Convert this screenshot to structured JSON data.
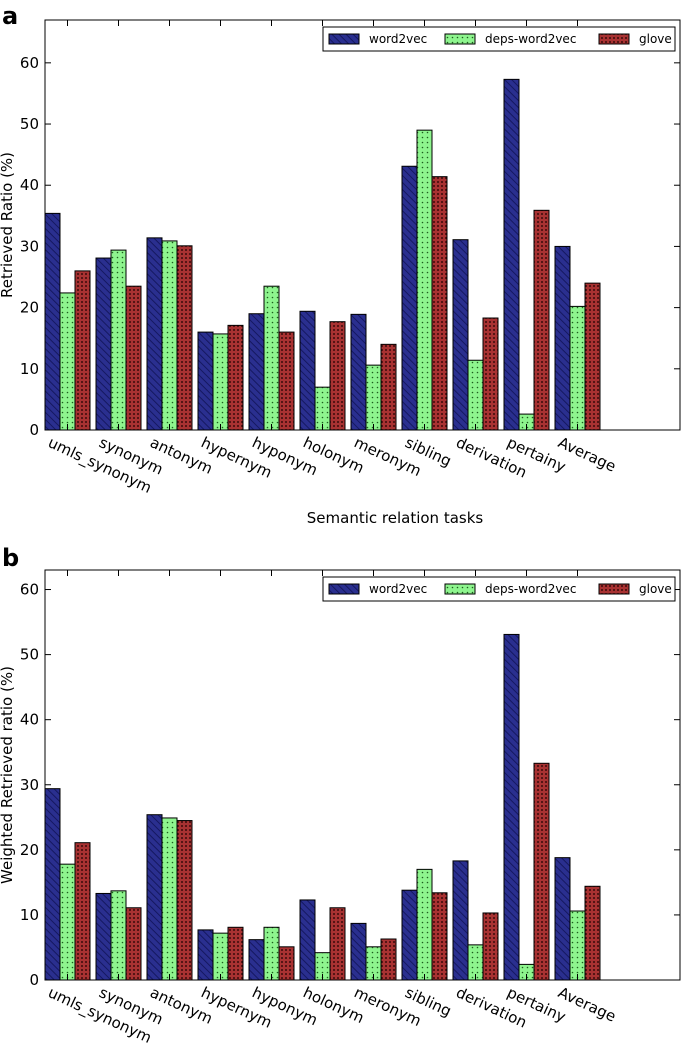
{
  "chart_data": [
    {
      "panel_label": "a",
      "type": "bar",
      "categories": [
        "umls_synonym",
        "synonym",
        "antonym",
        "hypernym",
        "hyponym",
        "holonym",
        "meronym",
        "sibling",
        "derivation",
        "pertainy",
        "Average"
      ],
      "series": [
        {
          "name": "word2vec",
          "color": "#2a2f8f",
          "pattern": "hatch",
          "values": [
            35.4,
            28.1,
            31.4,
            16.0,
            19.0,
            19.4,
            18.9,
            43.1,
            31.1,
            57.3,
            30.0
          ]
        },
        {
          "name": "deps-word2vec",
          "color": "#8ef58e",
          "pattern": "dots",
          "values": [
            22.4,
            29.4,
            30.9,
            15.7,
            23.5,
            7.0,
            10.6,
            49.0,
            11.4,
            2.6,
            20.2
          ]
        },
        {
          "name": "glove",
          "color": "#a83232",
          "pattern": "dense-dots",
          "values": [
            26.0,
            23.5,
            30.1,
            17.1,
            16.0,
            17.7,
            14.0,
            41.4,
            18.3,
            35.9,
            24.0
          ]
        }
      ],
      "title": "",
      "xlabel": "Semantic relation tasks",
      "ylabel": "Retrieved Ratio (%)",
      "ylim": [
        0,
        67
      ],
      "yticks": [
        "0",
        "10",
        "20",
        "30",
        "40",
        "50",
        "60"
      ],
      "legend": "top-right"
    },
    {
      "panel_label": "b",
      "type": "bar",
      "categories": [
        "umls_synonym",
        "synonym",
        "antonym",
        "hypernym",
        "hyponym",
        "holonym",
        "meronym",
        "sibling",
        "derivation",
        "pertainy",
        "Average"
      ],
      "series": [
        {
          "name": "word2vec",
          "color": "#2a2f8f",
          "pattern": "hatch",
          "values": [
            29.4,
            13.3,
            25.4,
            7.7,
            6.2,
            12.3,
            8.7,
            13.8,
            18.3,
            53.1,
            18.8
          ]
        },
        {
          "name": "deps-word2vec",
          "color": "#8ef58e",
          "pattern": "dots",
          "values": [
            17.8,
            13.7,
            24.9,
            7.2,
            8.1,
            4.2,
            5.1,
            17.0,
            5.4,
            2.4,
            10.6
          ]
        },
        {
          "name": "glove",
          "color": "#a83232",
          "pattern": "dense-dots",
          "values": [
            21.1,
            11.1,
            24.5,
            8.1,
            5.1,
            11.1,
            6.3,
            13.4,
            10.3,
            33.3,
            14.4
          ]
        }
      ],
      "title": "",
      "xlabel": "",
      "ylabel": "Weighted Retrieved ratio (%)",
      "ylim": [
        0,
        63
      ],
      "yticks": [
        "0",
        "10",
        "20",
        "30",
        "40",
        "50",
        "60"
      ],
      "legend": "top-right"
    }
  ]
}
